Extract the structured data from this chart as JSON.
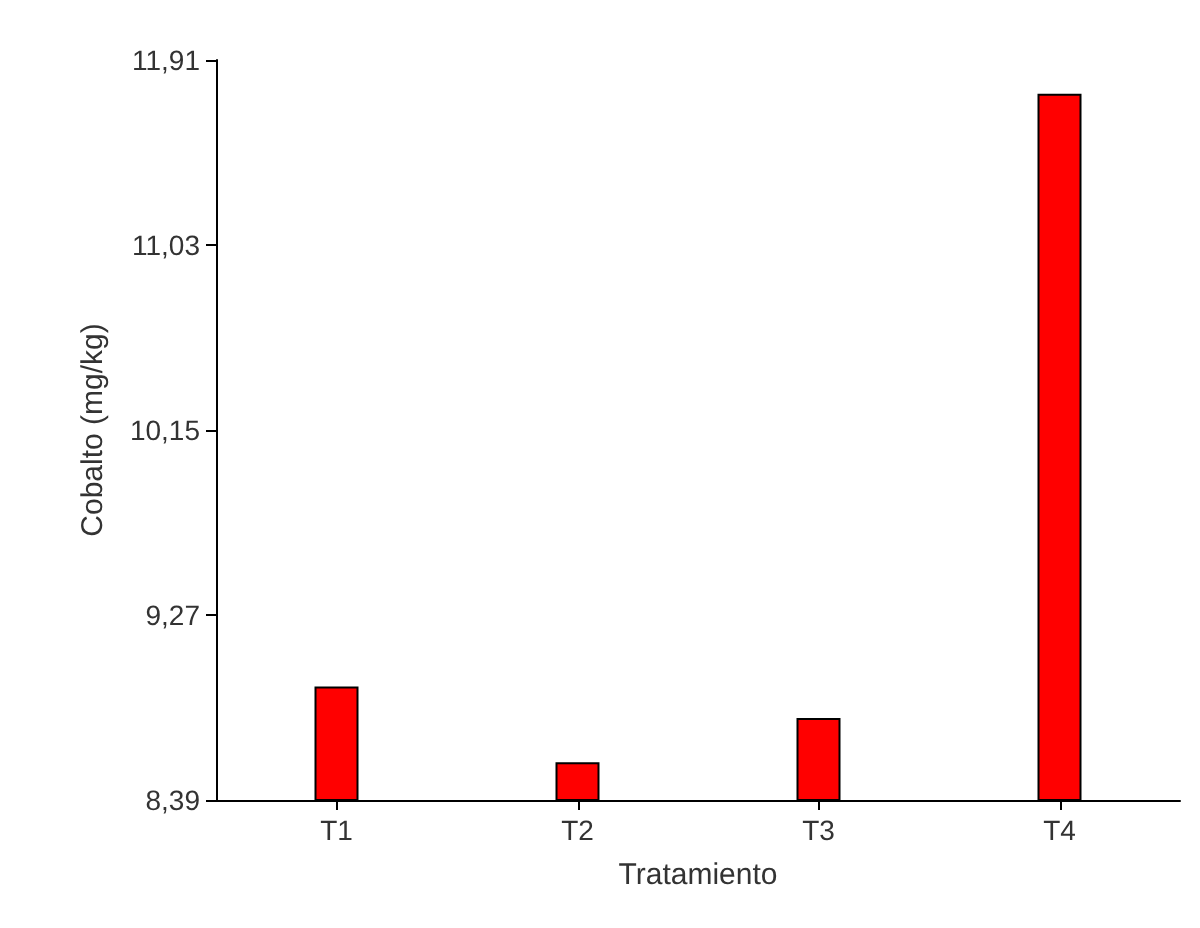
{
  "chart_data": {
    "type": "bar",
    "xlabel": "Tratamiento",
    "ylabel": "Cobalto (mg/kg)",
    "categories": [
      "T1",
      "T2",
      "T3",
      "T4"
    ],
    "values": [
      8.93,
      8.57,
      8.78,
      11.75
    ],
    "color": "#ff0000",
    "ylim": [
      8.39,
      11.91
    ],
    "yticks": [
      {
        "value": 8.39,
        "label": "8,39"
      },
      {
        "value": 9.27,
        "label": "9,27"
      },
      {
        "value": 10.15,
        "label": "10,15"
      },
      {
        "value": 11.03,
        "label": "11,03"
      },
      {
        "value": 11.91,
        "label": "11,91"
      }
    ],
    "grid": false
  }
}
